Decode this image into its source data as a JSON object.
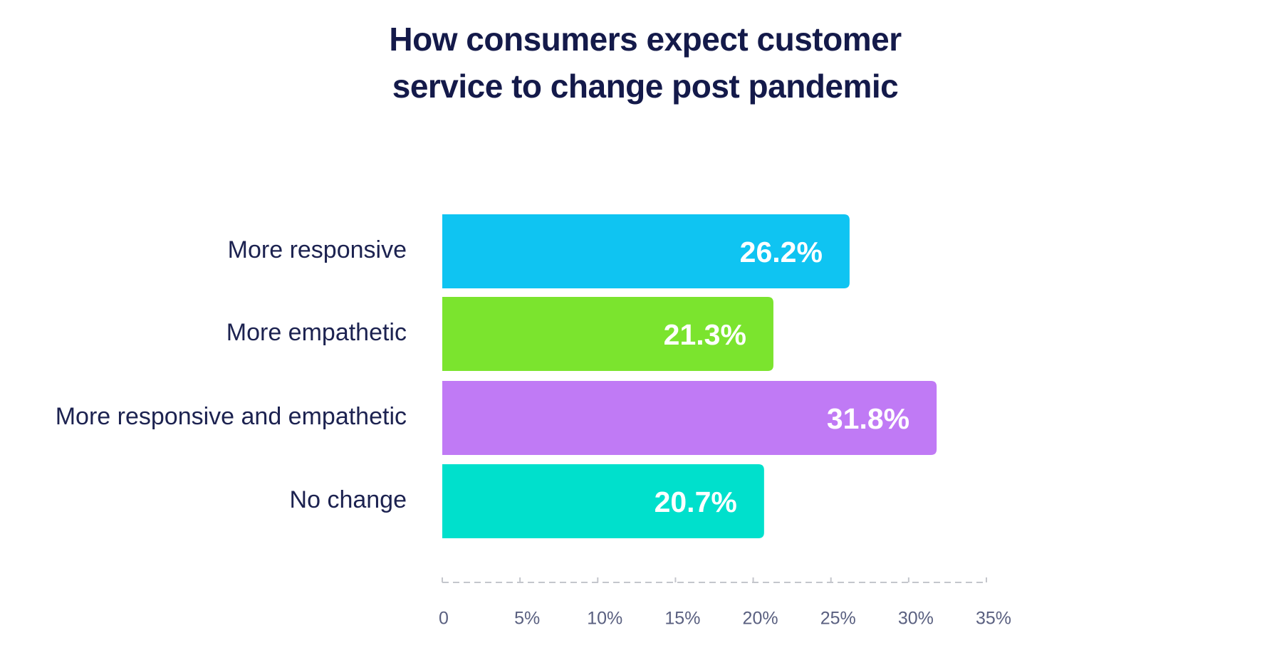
{
  "chart_data": {
    "type": "bar",
    "orientation": "horizontal",
    "title_lines": [
      "How consumers expect customer",
      "service to change post pandemic"
    ],
    "categories": [
      "More responsive",
      "More empathetic",
      "More responsive and empathetic",
      "No change"
    ],
    "values": [
      26.2,
      21.3,
      31.8,
      20.7
    ],
    "value_labels": [
      "26.2%",
      "21.3%",
      "31.8%",
      "20.7%"
    ],
    "colors": [
      "#0fc4f2",
      "#7be42e",
      "#c07af5",
      "#00e0cc"
    ],
    "xlim": [
      0,
      35
    ],
    "xticks": [
      0,
      5,
      10,
      15,
      20,
      25,
      30,
      35
    ],
    "xtick_labels": [
      "0",
      "5%",
      "10%",
      "15%",
      "20%",
      "25%",
      "30%",
      "35%"
    ],
    "grid": false,
    "legend": "none"
  }
}
